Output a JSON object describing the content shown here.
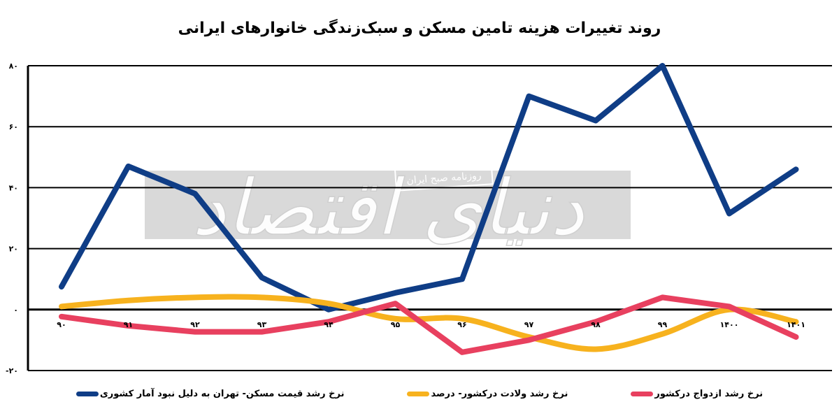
{
  "chart_data": {
    "type": "line",
    "title": "روند تغییرات هزینه تامین مسکن و سبک‌زندگی خانوارهای ایرانی",
    "xlabel": "",
    "ylabel": "",
    "x": [
      "۹۰",
      "۹۱",
      "۹۲",
      "۹۳",
      "۹۴",
      "۹۵",
      "۹۶",
      "۹۷",
      "۹۸",
      "۹۹",
      "۱۴۰۰",
      "۱۴۰۱"
    ],
    "ylim": [
      -20,
      80
    ],
    "yticks": [
      80,
      60,
      40,
      20,
      0,
      -20
    ],
    "ytick_labels": [
      "۸۰",
      "۶۰",
      "۴۰",
      "۲۰",
      "۰",
      "-۲۰"
    ],
    "grid": true,
    "legend_position": "bottom",
    "series": [
      {
        "name": "نرخ رشد قیمت مسکن- تهران به دلیل نبود آمار کشوری",
        "color": "#0f3d86",
        "values": [
          7.5,
          47,
          38,
          10.5,
          0,
          5.5,
          10,
          70,
          62,
          80,
          31.5,
          46
        ]
      },
      {
        "name": "نرخ رشد ولادت درکشور- درصد",
        "color": "#f7b21e",
        "smooth": true,
        "values": [
          1,
          3,
          4,
          4,
          2,
          -3,
          -3,
          -9,
          -13,
          -8,
          0,
          -4
        ]
      },
      {
        "name": "نرخ رشد ازدواج درکشور",
        "color": "#e8405f",
        "values": [
          -2.3,
          -5.3,
          -7.3,
          -7.3,
          -4,
          2,
          -14,
          -10,
          -4,
          4,
          1,
          -9
        ]
      }
    ]
  },
  "watermark": {
    "logo_text": "دنیای اقتصاد",
    "tagline": "روزنامه صبح ایران"
  },
  "legend": {
    "items": [
      {
        "label": "نرخ رشد قیمت مسکن- تهران به دلیل نبود آمار کشوری",
        "color": "#0f3d86"
      },
      {
        "label": "نرخ رشد ولادت درکشور- درصد",
        "color": "#f7b21e"
      },
      {
        "label": "نرخ رشد ازدواج درکشور",
        "color": "#e8405f"
      }
    ]
  }
}
